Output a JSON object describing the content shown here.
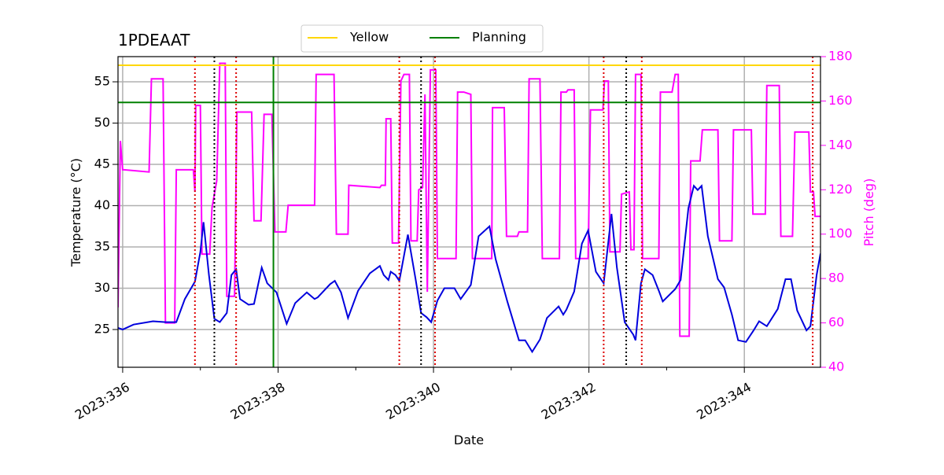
{
  "chart_data": {
    "type": "line",
    "title": "1PDEAAT",
    "xlabel": "Date",
    "ylabel": "Temperature (°C)",
    "y2label": "Pitch (deg)",
    "xlim": [
      335.94,
      344.98
    ],
    "ylim": [
      20.43,
      58.05
    ],
    "y2lim": [
      40,
      180
    ],
    "xticks": [
      {
        "value": 336,
        "label": "2023:336"
      },
      {
        "value": 338,
        "label": "2023:338"
      },
      {
        "value": 340,
        "label": "2023:340"
      },
      {
        "value": 342,
        "label": "2023:342"
      },
      {
        "value": 344,
        "label": "2023:344"
      }
    ],
    "xminor_ticks": [
      337,
      339,
      341,
      343
    ],
    "yticks": [
      25,
      30,
      35,
      40,
      45,
      50,
      55
    ],
    "y2ticks": [
      40,
      60,
      80,
      100,
      120,
      140,
      160,
      180
    ],
    "y2color": "#ff00ff",
    "grid": true,
    "legend": "upper center",
    "hlines": [
      {
        "name": "Yellow",
        "color": "#ffd700",
        "value": 57.0
      },
      {
        "name": "Planning",
        "color": "#008000",
        "value": 52.5
      }
    ],
    "vlines": [
      {
        "x": 337.94,
        "color": "#008000",
        "style": "solid"
      },
      {
        "x": 336.93,
        "color": "#dd0000",
        "style": "dotted"
      },
      {
        "x": 337.46,
        "color": "#dd0000",
        "style": "dotted"
      },
      {
        "x": 339.56,
        "color": "#dd0000",
        "style": "dotted"
      },
      {
        "x": 340.02,
        "color": "#dd0000",
        "style": "dotted"
      },
      {
        "x": 342.19,
        "color": "#dd0000",
        "style": "dotted"
      },
      {
        "x": 342.68,
        "color": "#dd0000",
        "style": "dotted"
      },
      {
        "x": 344.88,
        "color": "#dd0000",
        "style": "dotted"
      },
      {
        "x": 337.18,
        "color": "#000000",
        "style": "dotted"
      },
      {
        "x": 339.84,
        "color": "#000000",
        "style": "dotted"
      },
      {
        "x": 342.48,
        "color": "#000000",
        "style": "dotted"
      }
    ],
    "series": [
      {
        "color": "#ff00ff",
        "axis": "y2",
        "x": [
          335.94,
          335.97,
          336.0,
          336.02,
          336.34,
          336.37,
          336.52,
          336.55,
          336.67,
          336.69,
          336.91,
          336.93,
          336.94,
          337.0,
          337.02,
          337.12,
          337.15,
          337.21,
          337.25,
          337.32,
          337.34,
          337.44,
          337.47,
          337.66,
          337.69,
          337.78,
          337.82,
          337.92,
          337.96,
          338.1,
          338.13,
          338.47,
          338.49,
          338.72,
          338.75,
          338.9,
          338.91,
          339.31,
          339.33,
          339.38,
          339.39,
          339.45,
          339.47,
          339.55,
          339.58,
          339.62,
          339.69,
          339.71,
          339.79,
          339.81,
          339.86,
          339.89,
          339.92,
          339.96,
          340.03,
          340.05,
          340.29,
          340.31,
          340.39,
          340.48,
          340.5,
          340.75,
          340.76,
          340.91,
          340.94,
          341.08,
          341.1,
          341.21,
          341.23,
          341.37,
          341.4,
          341.62,
          341.64,
          341.71,
          341.73,
          341.81,
          341.83,
          341.99,
          342.02,
          342.18,
          342.2,
          342.25,
          342.27,
          342.4,
          342.42,
          342.52,
          342.54,
          342.58,
          342.6,
          342.67,
          342.69,
          342.9,
          342.92,
          343.07,
          343.11,
          343.15,
          343.17,
          343.29,
          343.31,
          343.43,
          343.46,
          343.66,
          343.68,
          343.84,
          343.86,
          344.09,
          344.11,
          344.27,
          344.29,
          344.45,
          344.47,
          344.62,
          344.65,
          344.83,
          344.85,
          344.89,
          344.91,
          344.98
        ],
        "values": [
          67,
          142,
          129,
          129,
          128,
          170,
          170,
          60,
          60,
          129,
          129,
          119,
          158,
          158,
          91,
          91,
          112,
          124,
          177,
          177,
          72,
          72,
          155,
          155,
          106,
          106,
          154,
          154,
          101,
          101,
          113,
          113,
          172,
          172,
          100,
          100,
          122,
          121,
          122,
          122,
          152,
          152,
          96,
          96,
          169,
          172,
          172,
          97,
          97,
          120,
          121,
          163,
          74,
          174,
          174,
          89,
          89,
          164,
          164,
          163,
          89,
          89,
          157,
          157,
          99,
          99,
          101,
          101,
          170,
          170,
          89,
          89,
          164,
          164,
          165,
          165,
          89,
          89,
          156,
          156,
          169,
          169,
          92,
          92,
          118,
          119,
          93,
          93,
          172,
          172,
          89,
          89,
          164,
          164,
          172,
          172,
          54,
          54,
          133,
          133,
          147,
          147,
          97,
          97,
          147,
          147,
          109,
          109,
          167,
          167,
          99,
          99,
          146,
          146,
          119,
          119,
          108,
          108
        ]
      },
      {
        "color": "#0000dd",
        "x": [
          335.94,
          336.0,
          336.14,
          336.39,
          336.55,
          336.69,
          336.8,
          336.93,
          337.0,
          337.04,
          337.11,
          337.18,
          337.25,
          337.34,
          337.4,
          337.46,
          337.51,
          337.62,
          337.69,
          337.79,
          337.86,
          337.98,
          338.11,
          338.22,
          338.37,
          338.47,
          338.51,
          338.67,
          338.73,
          338.81,
          338.9,
          339.03,
          339.18,
          339.31,
          339.36,
          339.42,
          339.45,
          339.51,
          339.56,
          339.67,
          339.77,
          339.84,
          339.91,
          339.97,
          340.05,
          340.14,
          340.27,
          340.35,
          340.48,
          340.58,
          340.72,
          340.8,
          340.95,
          341.1,
          341.18,
          341.27,
          341.37,
          341.46,
          341.61,
          341.67,
          341.71,
          341.81,
          341.91,
          341.99,
          342.09,
          342.19,
          342.29,
          342.36,
          342.46,
          342.57,
          342.6,
          342.67,
          342.72,
          342.82,
          342.9,
          342.95,
          343.11,
          343.18,
          343.28,
          343.35,
          343.4,
          343.45,
          343.53,
          343.66,
          343.74,
          343.84,
          343.92,
          344.02,
          344.12,
          344.19,
          344.29,
          344.43,
          344.53,
          344.6,
          344.68,
          344.8,
          344.85,
          344.93,
          344.98
        ],
        "values": [
          25.2,
          25.0,
          25.6,
          26.0,
          25.9,
          25.9,
          28.7,
          30.8,
          34.4,
          38.0,
          31.6,
          26.3,
          25.9,
          27.0,
          31.6,
          32.3,
          28.7,
          28.0,
          28.1,
          32.5,
          30.6,
          29.5,
          25.7,
          28.2,
          29.5,
          28.7,
          28.9,
          30.5,
          30.9,
          29.5,
          26.4,
          29.7,
          31.8,
          32.7,
          31.6,
          31.0,
          32.0,
          31.6,
          30.9,
          36.5,
          31.1,
          27.0,
          26.5,
          25.9,
          28.5,
          30.0,
          30.0,
          28.7,
          30.4,
          36.3,
          37.5,
          33.5,
          28.4,
          23.7,
          23.7,
          22.3,
          23.8,
          26.4,
          27.8,
          26.8,
          27.4,
          29.6,
          35.4,
          37.0,
          32.0,
          30.6,
          39.0,
          32.5,
          25.9,
          24.4,
          23.7,
          30.6,
          32.3,
          31.6,
          29.7,
          28.4,
          29.9,
          31.0,
          39.7,
          42.4,
          41.9,
          42.4,
          36.3,
          31.1,
          30.1,
          26.8,
          23.7,
          23.5,
          24.9,
          26.0,
          25.4,
          27.5,
          31.1,
          31.1,
          27.3,
          24.9,
          25.4,
          31.6,
          34.2
        ]
      }
    ]
  }
}
